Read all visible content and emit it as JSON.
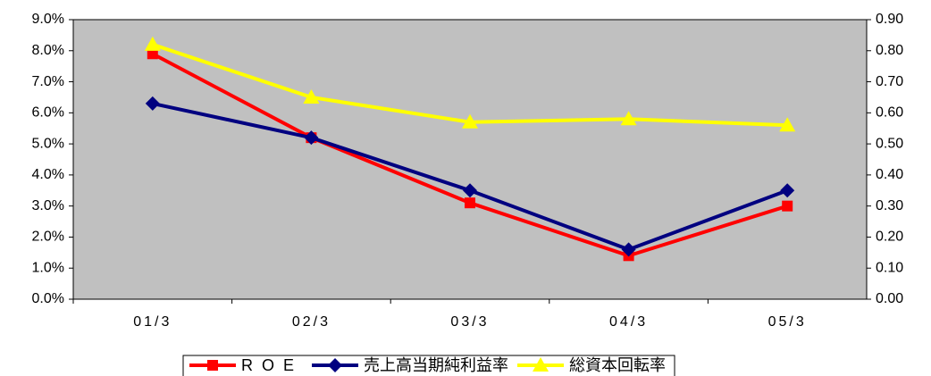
{
  "chart_data": {
    "type": "line",
    "categories": [
      "01/3",
      "02/3",
      "03/3",
      "04/3",
      "05/3"
    ],
    "series": [
      {
        "name": "ROE",
        "color": "#ff0000",
        "marker": "square",
        "values": [
          7.9,
          5.2,
          3.1,
          1.4,
          3.0
        ]
      },
      {
        "name": "売上高当期純利益率",
        "color": "#000080",
        "marker": "diamond",
        "values": [
          6.3,
          5.2,
          3.5,
          1.6,
          3.5
        ]
      },
      {
        "name": "総資本回転率",
        "color": "#ffff00",
        "marker": "triangle",
        "axis": "y2",
        "values": [
          0.82,
          0.65,
          0.57,
          0.58,
          0.56
        ]
      }
    ],
    "ylim": [
      0,
      9
    ],
    "yticks": [
      {
        "value": 0,
        "label": "0.0%"
      },
      {
        "value": 1,
        "label": "1.0%"
      },
      {
        "value": 2,
        "label": "2.0%"
      },
      {
        "value": 3,
        "label": "3.0%"
      },
      {
        "value": 4,
        "label": "4.0%"
      },
      {
        "value": 5,
        "label": "5.0%"
      },
      {
        "value": 6,
        "label": "6.0%"
      },
      {
        "value": 7,
        "label": "7.0%"
      },
      {
        "value": 8,
        "label": "8.0%"
      },
      {
        "value": 9,
        "label": "9.0%"
      }
    ],
    "y2lim": [
      0,
      0.9
    ],
    "y2ticks": [
      {
        "value": 0,
        "label": "0.00"
      },
      {
        "value": 0.1,
        "label": "0.10"
      },
      {
        "value": 0.2,
        "label": "0.20"
      },
      {
        "value": 0.3,
        "label": "0.30"
      },
      {
        "value": 0.4,
        "label": "0.40"
      },
      {
        "value": 0.5,
        "label": "0.50"
      },
      {
        "value": 0.6,
        "label": "0.60"
      },
      {
        "value": 0.7,
        "label": "0.70"
      },
      {
        "value": 0.8,
        "label": "0.80"
      },
      {
        "value": 0.9,
        "label": "0.90"
      }
    ],
    "plot_background": "#c0c0c0",
    "legend": "bottom"
  }
}
